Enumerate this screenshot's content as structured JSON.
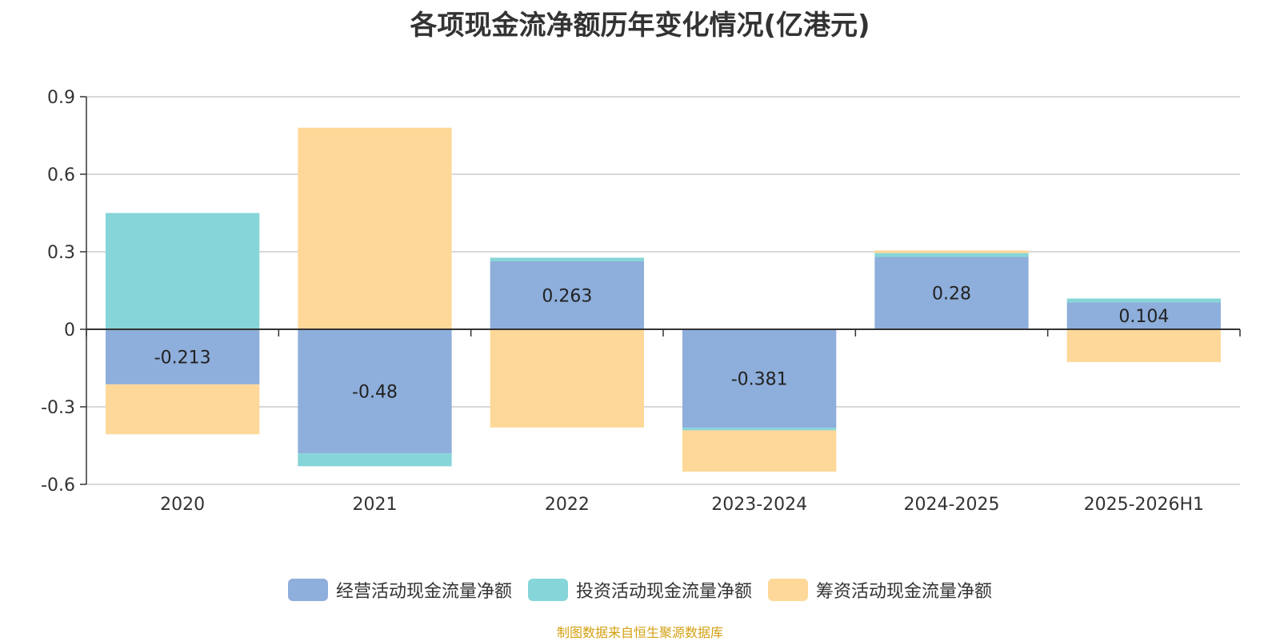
{
  "title": "各项现金流净额历年变化情况(亿港元)",
  "source": "制图数据来自恒生聚源数据库",
  "colors": {
    "operating": "#8eaedb",
    "investing": "#86d5d8",
    "financing": "#fdd898",
    "source_text": "#d4a012",
    "axis": "#333333",
    "grid": "#cccccc"
  },
  "chart_data": {
    "type": "bar",
    "stacked": true,
    "title": "各项现金流净额历年变化情况(亿港元)",
    "categories": [
      "2020",
      "2021",
      "2022",
      "2023-2024",
      "2024-2025",
      "2025-2026H1"
    ],
    "yticks": [
      "0.9",
      "0.6",
      "0.3",
      "0",
      "-0.3",
      "-0.6"
    ],
    "ylim": [
      -0.6,
      0.9
    ],
    "grid": true,
    "legend_position": "bottom",
    "series": [
      {
        "name": "经营活动现金流量净额",
        "color": "#8eaedb",
        "labeled": true,
        "values": [
          -0.213,
          -0.48,
          0.263,
          -0.381,
          0.28,
          0.104
        ],
        "labels": [
          "-0.213",
          "-0.48",
          "0.263",
          "-0.381",
          "0.28",
          "0.104"
        ]
      },
      {
        "name": "投资活动现金流量净额",
        "color": "#86d5d8",
        "labeled": false,
        "values": [
          0.45,
          -0.05,
          0.014,
          -0.01,
          0.015,
          0.015
        ]
      },
      {
        "name": "筹资活动现金流量净额",
        "color": "#fdd898",
        "labeled": false,
        "values": [
          -0.193,
          0.78,
          -0.38,
          -0.16,
          0.01,
          -0.127
        ]
      }
    ]
  }
}
